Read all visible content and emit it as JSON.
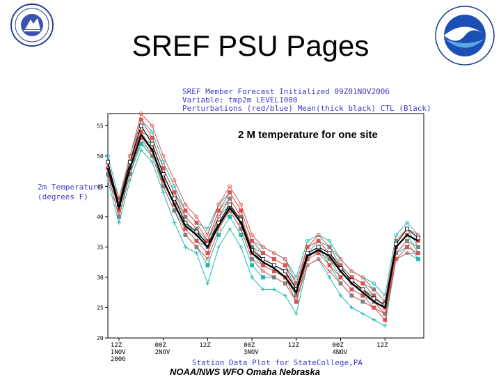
{
  "slide": {
    "title": "SREF PSU Pages",
    "footer": "NOAA/NWS WFO Omaha Nebraska"
  },
  "logos": {
    "left": "nws-logo",
    "right": "noaa-logo"
  },
  "chart_header": {
    "line1": "SREF Member Forecast Initialized 09Z01NOV2006",
    "line2": "Variable: tmp2m LEVEL1000",
    "line3": "Perturbations (red/blue) Mean(thick black) CTL (Black)"
  },
  "chart_data": {
    "type": "line",
    "title": "2 M temperature for one site",
    "ylabel_line1": "2m Temperature",
    "ylabel_line2": "(degrees F)",
    "xlabel": "Station Data Plot for StateCollege,PA",
    "ylim": [
      20,
      57
    ],
    "y_ticks": [
      "55",
      "50",
      "45",
      "40",
      "35",
      "30",
      "25",
      "20"
    ],
    "y_tick_values": [
      55,
      50,
      45,
      40,
      35,
      30,
      25,
      20
    ],
    "x_ticks": [
      {
        "x": 1,
        "l1": "12Z",
        "l2": "1NOV",
        "l3": "2006"
      },
      {
        "x": 5,
        "l1": "00Z",
        "l2": "2NOV",
        "l3": ""
      },
      {
        "x": 9,
        "l1": "12Z",
        "l2": "",
        "l3": ""
      },
      {
        "x": 13,
        "l1": "00Z",
        "l2": "3NOV",
        "l3": ""
      },
      {
        "x": 17,
        "l1": "12Z",
        "l2": "",
        "l3": ""
      },
      {
        "x": 21,
        "l1": "00Z",
        "l2": "4NOV",
        "l3": ""
      },
      {
        "x": 25,
        "l1": "12Z",
        "l2": "",
        "l3": ""
      }
    ],
    "xlim": [
      0,
      28.5
    ],
    "x": [
      0,
      1,
      2,
      3,
      4,
      5,
      6,
      7,
      8,
      9,
      10,
      11,
      12,
      13,
      14,
      15,
      16,
      17,
      18,
      19,
      20,
      21,
      22,
      23,
      24,
      25,
      26,
      27,
      28
    ],
    "series": [
      {
        "role": "mean",
        "color": "#000000",
        "width": 2.4,
        "marker": "none",
        "values": [
          48,
          41.5,
          48,
          53.5,
          51,
          46,
          42,
          38.5,
          37,
          35,
          38.5,
          41.5,
          39,
          34,
          32.5,
          31.5,
          30,
          27.5,
          33.5,
          34.5,
          33.5,
          31,
          29,
          27.5,
          26,
          25,
          35,
          37,
          36
        ]
      },
      {
        "role": "ctl",
        "color": "#000000",
        "width": 1.1,
        "marker": "square",
        "values": [
          49,
          42,
          49,
          55,
          52,
          47,
          43,
          39,
          37.5,
          35.5,
          39,
          42,
          39.5,
          34.5,
          33,
          32,
          31,
          28,
          34,
          35,
          34,
          31.5,
          29.5,
          28,
          26.5,
          25.5,
          35.5,
          38,
          36.5
        ]
      },
      {
        "role": "pert",
        "color": "#1ab8b0",
        "width": 1,
        "marker": "square",
        "values": [
          47,
          40,
          47,
          52,
          51,
          45,
          41,
          37,
          35,
          32,
          37,
          40,
          37,
          32,
          30,
          30,
          29,
          26,
          33,
          35,
          32,
          29,
          27,
          26,
          25,
          24,
          34,
          35,
          34
        ]
      },
      {
        "role": "pert",
        "color": "#1ab8b0",
        "width": 1,
        "marker": "plus",
        "values": [
          46,
          39,
          46,
          51,
          49,
          44,
          39,
          35,
          34,
          29,
          35,
          38,
          35,
          30,
          28,
          28,
          27,
          24,
          32,
          33,
          30,
          27,
          25,
          24,
          23,
          22,
          33,
          34,
          33
        ]
      },
      {
        "role": "pert",
        "color": "#1ab8b0",
        "width": 1,
        "marker": "circle",
        "values": [
          50,
          43,
          50,
          56,
          54,
          49,
          45,
          41,
          39,
          38,
          42,
          44,
          41,
          36,
          35,
          34,
          33,
          30,
          36,
          37,
          36,
          33,
          31,
          30,
          29,
          27,
          37,
          39,
          37
        ]
      },
      {
        "role": "pert",
        "color": "#1ab8b0",
        "width": 1,
        "marker": "square",
        "values": [
          49,
          42,
          49,
          54,
          53,
          48,
          44,
          40,
          38,
          36,
          41,
          43,
          40,
          35,
          34,
          33,
          32,
          29,
          35,
          36,
          35,
          32,
          30,
          29,
          28,
          26,
          36,
          38,
          35
        ]
      },
      {
        "role": "pert",
        "color": "#1ab8b0",
        "width": 1,
        "marker": "circle",
        "values": [
          48,
          41,
          48,
          53,
          52,
          47,
          43,
          39,
          37,
          36,
          40,
          42,
          39,
          34,
          33,
          32,
          31,
          28,
          34,
          36,
          34,
          32,
          29,
          28,
          27,
          25,
          35,
          37,
          34
        ]
      },
      {
        "role": "pert",
        "color": "#1ab8b0",
        "width": 1,
        "marker": "square",
        "values": [
          47,
          40,
          48,
          52,
          50,
          45,
          41,
          38,
          36,
          35,
          39,
          41,
          38,
          33,
          32,
          31,
          30,
          27,
          34,
          34,
          33,
          30,
          28,
          27,
          26,
          24,
          34,
          36,
          33
        ]
      },
      {
        "role": "pert",
        "color": "#e05050",
        "width": 1,
        "marker": "circle",
        "values": [
          49,
          42,
          50,
          57,
          55,
          50,
          46,
          42,
          40,
          37,
          42,
          45,
          42,
          37,
          35,
          34,
          33,
          29,
          35,
          37,
          35,
          33,
          31,
          30,
          28,
          26,
          36,
          38,
          37
        ]
      },
      {
        "role": "pert",
        "color": "#e05050",
        "width": 1,
        "marker": "square",
        "values": [
          48,
          41,
          49,
          56,
          53,
          48,
          44,
          41,
          39,
          36,
          41,
          44,
          41,
          36,
          34,
          33,
          32,
          28,
          35,
          36,
          34,
          32,
          30,
          29,
          27,
          25,
          35,
          37,
          36
        ]
      },
      {
        "role": "pert",
        "color": "#e05050",
        "width": 1,
        "marker": "circle",
        "values": [
          47,
          42,
          48,
          55,
          52,
          47,
          43,
          40,
          38,
          35,
          40,
          43,
          40,
          35,
          33,
          32,
          31,
          27,
          34,
          35,
          33,
          31,
          29,
          28,
          26,
          24,
          34,
          36,
          35
        ]
      },
      {
        "role": "pert",
        "color": "#e05050",
        "width": 1,
        "marker": "square",
        "values": [
          48,
          43,
          49,
          54,
          51,
          46,
          42,
          38,
          36,
          34,
          39,
          42,
          39,
          34,
          32,
          31,
          30,
          26,
          33,
          34,
          32,
          30,
          28,
          27,
          25,
          23,
          33,
          35,
          34
        ]
      },
      {
        "role": "pert",
        "color": "#e05050",
        "width": 1,
        "marker": "circle",
        "values": [
          47,
          40,
          47,
          53,
          50,
          45,
          41,
          37,
          35,
          33,
          38,
          41,
          38,
          33,
          31,
          30,
          29,
          26,
          32,
          33,
          31,
          29,
          27,
          26,
          25,
          24,
          33,
          34,
          34
        ]
      }
    ]
  }
}
